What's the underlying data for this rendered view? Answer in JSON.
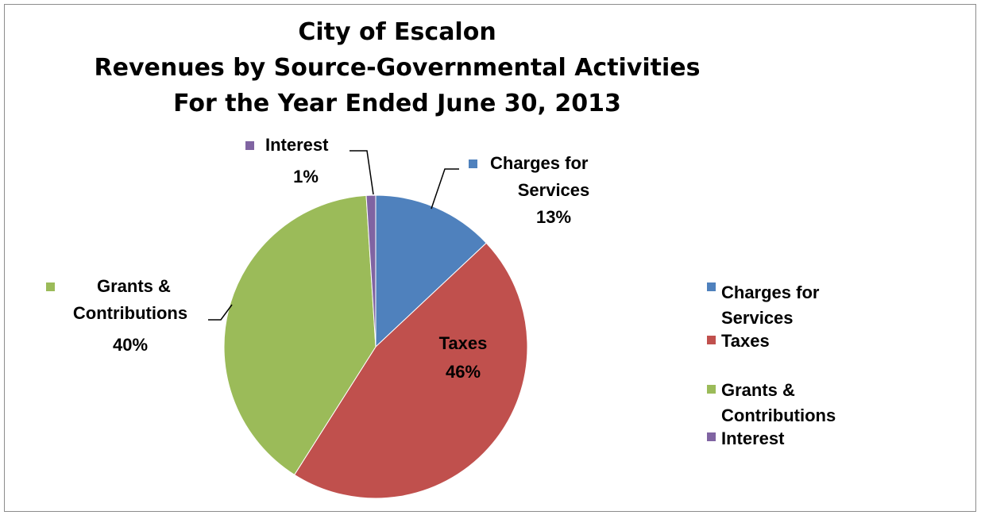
{
  "chart_data": {
    "type": "pie",
    "title_lines": [
      "City of Escalon",
      "Revenues by Source-Governmental Activities",
      "For the Year Ended June 30, 2013"
    ],
    "slices": [
      {
        "name": "Charges for Services",
        "percent_label": "13%",
        "value": 13,
        "color": "#4f81bd"
      },
      {
        "name": "Taxes",
        "percent_label": "46%",
        "value": 46,
        "color": "#c0504d"
      },
      {
        "name": "Grants & Contributions",
        "percent_label": "40%",
        "value": 40,
        "color": "#9bbb59"
      },
      {
        "name": "Interest",
        "percent_label": "1%",
        "value": 1,
        "color": "#8064a2"
      }
    ],
    "slice_order": "clockwise from top",
    "legend": {
      "placement": "right",
      "entries": [
        {
          "lines": [
            "Charges for",
            "Services"
          ],
          "color": "#4f81bd"
        },
        {
          "lines": [
            "Taxes"
          ],
          "color": "#c0504d"
        },
        {
          "lines": [
            "Grants &",
            "Contributions"
          ],
          "color": "#9bbb59"
        },
        {
          "lines": [
            "Interest"
          ],
          "color": "#8064a2"
        }
      ]
    },
    "data_labels": {
      "charges": {
        "lines": [
          "Charges for",
          "Services"
        ],
        "percent": "13%"
      },
      "taxes": {
        "lines": [
          "Taxes"
        ],
        "percent": "46%"
      },
      "grants": {
        "lines": [
          "Grants &",
          "Contributions"
        ],
        "percent": "40%"
      },
      "interest": {
        "lines": [
          "Interest"
        ],
        "percent": "1%"
      }
    }
  }
}
